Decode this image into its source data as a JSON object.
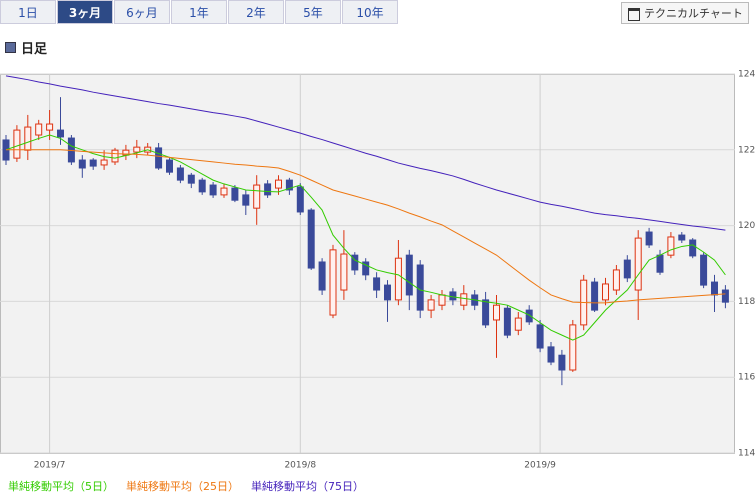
{
  "tabs": [
    "1日",
    "3ヶ月",
    "6ヶ月",
    "1年",
    "2年",
    "5年",
    "10年"
  ],
  "active_tab": 1,
  "button": "テクニカルチャート",
  "period_label": "日足",
  "chart_data": {
    "type": "candlestick",
    "categories": [
      null,
      null,
      null,
      null,
      "2019/7",
      null,
      null,
      null,
      null,
      null,
      null,
      null,
      null,
      null,
      null,
      null,
      null,
      null,
      null,
      null,
      null,
      null,
      null,
      null,
      null,
      null,
      null,
      "2019/8",
      null,
      null,
      null,
      null,
      null,
      null,
      null,
      null,
      null,
      null,
      null,
      null,
      null,
      null,
      null,
      null,
      null,
      null,
      null,
      null,
      null,
      "2019/9",
      null,
      null,
      null,
      null,
      null,
      null,
      null,
      null,
      null,
      null,
      null,
      null,
      null,
      null,
      null,
      null,
      null
    ],
    "open": [
      122.26,
      121.78,
      121.99,
      122.39,
      122.52,
      122.52,
      122.31,
      121.73,
      121.73,
      121.6,
      121.68,
      121.86,
      121.94,
      121.94,
      122.05,
      121.73,
      121.52,
      121.33,
      121.2,
      121.07,
      120.81,
      120.99,
      120.81,
      120.46,
      121.1,
      120.99,
      121.2,
      121.02,
      120.41,
      119.04,
      117.64,
      118.3,
      119.22,
      119.04,
      118.62,
      118.43,
      118.04,
      119.22,
      118.96,
      117.77,
      117.9,
      118.25,
      117.9,
      118.17,
      118.04,
      117.51,
      117.82,
      117.24,
      117.77,
      117.38,
      116.8,
      116.58,
      116.19,
      117.38,
      118.51,
      118.04,
      118.3,
      119.09,
      118.3,
      119.83,
      119.22,
      119.22,
      119.75,
      119.62,
      119.22,
      118.51,
      118.3
    ],
    "high": [
      122.39,
      122.65,
      122.92,
      122.79,
      123.05,
      123.39,
      122.39,
      121.86,
      121.78,
      121.99,
      122.05,
      122.13,
      122.26,
      122.18,
      122.18,
      121.78,
      121.6,
      121.39,
      121.26,
      121.15,
      121.1,
      121.07,
      120.94,
      121.33,
      121.2,
      121.33,
      121.26,
      121.12,
      120.46,
      119.14,
      119.49,
      119.88,
      119.3,
      119.14,
      118.77,
      118.56,
      119.62,
      119.36,
      119.09,
      118.17,
      118.3,
      118.35,
      118.43,
      118.3,
      118.25,
      118.17,
      117.9,
      117.72,
      117.9,
      117.51,
      116.93,
      116.72,
      117.51,
      118.7,
      118.62,
      118.62,
      118.96,
      119.22,
      119.88,
      119.94,
      119.36,
      119.83,
      119.83,
      119.67,
      119.3,
      118.7,
      118.43
    ],
    "low": [
      121.6,
      121.68,
      121.73,
      122.26,
      122.26,
      122.13,
      121.6,
      121.26,
      121.47,
      121.47,
      121.6,
      121.73,
      121.78,
      121.86,
      121.47,
      121.34,
      121.12,
      120.99,
      120.81,
      120.73,
      120.73,
      120.62,
      120.28,
      120.02,
      120.73,
      120.81,
      120.81,
      120.28,
      118.83,
      118.17,
      117.56,
      118.04,
      118.7,
      118.56,
      118.09,
      117.46,
      117.9,
      117.77,
      117.56,
      117.56,
      117.77,
      117.9,
      117.77,
      117.77,
      117.3,
      116.51,
      117.03,
      117.11,
      117.38,
      116.66,
      116.32,
      115.79,
      116.14,
      117.24,
      117.72,
      117.9,
      118.17,
      118.51,
      117.51,
      119.41,
      118.7,
      119.14,
      119.54,
      119.14,
      118.35,
      117.72,
      117.82
    ],
    "close": [
      121.73,
      122.52,
      122.6,
      122.68,
      122.68,
      122.34,
      121.68,
      121.52,
      121.57,
      121.73,
      121.99,
      121.99,
      122.07,
      122.07,
      121.52,
      121.41,
      121.2,
      121.12,
      120.89,
      120.81,
      120.99,
      120.67,
      120.54,
      121.07,
      120.81,
      121.2,
      120.94,
      120.36,
      118.88,
      118.3,
      119.36,
      119.25,
      118.83,
      118.7,
      118.3,
      118.04,
      119.14,
      118.17,
      117.77,
      118.04,
      118.17,
      118.04,
      118.2,
      117.9,
      117.38,
      117.9,
      117.11,
      117.56,
      117.46,
      116.77,
      116.4,
      116.19,
      117.38,
      118.56,
      117.77,
      118.46,
      118.83,
      118.62,
      119.67,
      119.49,
      118.77,
      119.7,
      119.62,
      119.2,
      118.43,
      118.17,
      117.98
    ],
    "up_color": "#dd3311",
    "down_color": "#3a4a9a",
    "series": [
      {
        "name": "単純移動平均（5日）",
        "color": "#33cc00",
        "values": [
          122.0,
          122.1,
          122.2,
          122.3,
          122.39,
          122.3,
          122.1,
          122.0,
          121.9,
          121.82,
          121.78,
          121.85,
          121.92,
          122.0,
          121.9,
          121.8,
          121.68,
          121.52,
          121.36,
          121.2,
          121.1,
          121.02,
          120.94,
          120.92,
          120.9,
          120.89,
          120.98,
          121.07,
          120.75,
          120.41,
          119.75,
          119.4,
          119.09,
          118.96,
          118.83,
          118.76,
          118.7,
          118.5,
          118.3,
          118.24,
          118.17,
          118.12,
          118.08,
          118.04,
          117.99,
          117.95,
          117.9,
          117.77,
          117.64,
          117.44,
          117.24,
          117.11,
          116.98,
          117.11,
          117.44,
          117.77,
          118.04,
          118.3,
          118.7,
          119.09,
          119.22,
          119.36,
          119.45,
          119.49,
          119.3,
          119.09,
          118.7
        ]
      },
      {
        "name": "単純移動平均（25日）",
        "color": "#ee7711",
        "values": [
          122.0,
          122.0,
          122.0,
          122.0,
          122.0,
          122.0,
          121.98,
          121.96,
          121.94,
          121.92,
          121.9,
          121.89,
          121.88,
          121.86,
          121.83,
          121.8,
          121.77,
          121.74,
          121.71,
          121.68,
          121.65,
          121.62,
          121.6,
          121.57,
          121.55,
          121.52,
          121.43,
          121.33,
          121.2,
          121.07,
          120.94,
          120.86,
          120.78,
          120.7,
          120.62,
          120.54,
          120.44,
          120.33,
          120.23,
          120.12,
          120.02,
          119.86,
          119.7,
          119.54,
          119.38,
          119.22,
          119.0,
          118.78,
          118.56,
          118.36,
          118.17,
          118.07,
          117.98,
          117.97,
          117.96,
          117.96,
          117.99,
          118.01,
          118.04,
          118.06,
          118.08,
          118.1,
          118.12,
          118.14,
          118.16,
          118.18,
          118.2
        ]
      },
      {
        "name": "単純移動平均（75日）",
        "color": "#4422bb",
        "values": [
          123.95,
          123.9,
          123.85,
          123.79,
          123.74,
          123.68,
          123.63,
          123.58,
          123.52,
          123.47,
          123.42,
          123.37,
          123.32,
          123.27,
          123.22,
          123.18,
          123.13,
          123.08,
          123.03,
          122.98,
          122.94,
          122.89,
          122.84,
          122.76,
          122.68,
          122.6,
          122.52,
          122.44,
          122.35,
          122.27,
          122.18,
          122.09,
          122.0,
          121.91,
          121.83,
          121.74,
          121.65,
          121.58,
          121.51,
          121.45,
          121.38,
          121.31,
          121.22,
          121.12,
          121.03,
          120.94,
          120.86,
          120.78,
          120.7,
          120.62,
          120.56,
          120.51,
          120.45,
          120.39,
          120.33,
          120.29,
          120.26,
          120.22,
          120.19,
          120.15,
          120.11,
          120.07,
          120.03,
          119.99,
          119.96,
          119.92,
          119.88
        ]
      }
    ],
    "ylim": [
      114,
      124
    ],
    "yticks": [
      114,
      116,
      118,
      120,
      122,
      124
    ],
    "grid": true
  }
}
